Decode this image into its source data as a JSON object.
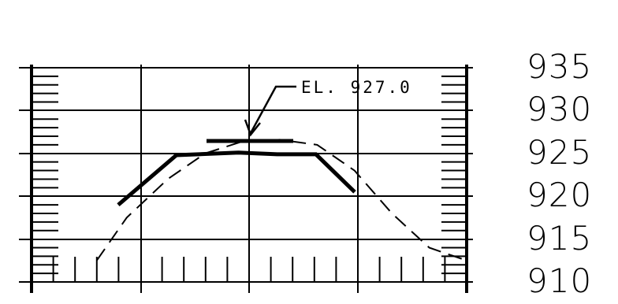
{
  "callout": {
    "text": "EL. 927.0"
  },
  "elevation_labels": [
    "935",
    "930",
    "925",
    "920",
    "915",
    "910"
  ],
  "chart_data": {
    "type": "line",
    "title": "",
    "xlabel": "",
    "ylabel": "",
    "y_ticks": [
      935,
      930,
      925,
      920,
      915,
      910
    ],
    "ylim": [
      908,
      938
    ],
    "grid": true,
    "series": [
      {
        "x": [
          0.05,
          0.45,
          1.0,
          1.5,
          2.0,
          2.5,
          3.0,
          3.5,
          4.0,
          4.5,
          5.0
        ],
        "values": [
          912.5,
          917.5,
          922.0,
          925.0,
          926.4,
          926.6,
          926.0,
          923.0,
          918.0,
          914.0,
          912.5
        ]
      },
      {
        "x": [
          0.45,
          1.2,
          2.0,
          2.5,
          3.0,
          3.5
        ],
        "values": [
          919.0,
          924.8,
          925.1,
          924.9,
          924.9,
          920.5
        ]
      }
    ]
  },
  "colors": {
    "ink": "#000000",
    "background": "#ffffff"
  }
}
